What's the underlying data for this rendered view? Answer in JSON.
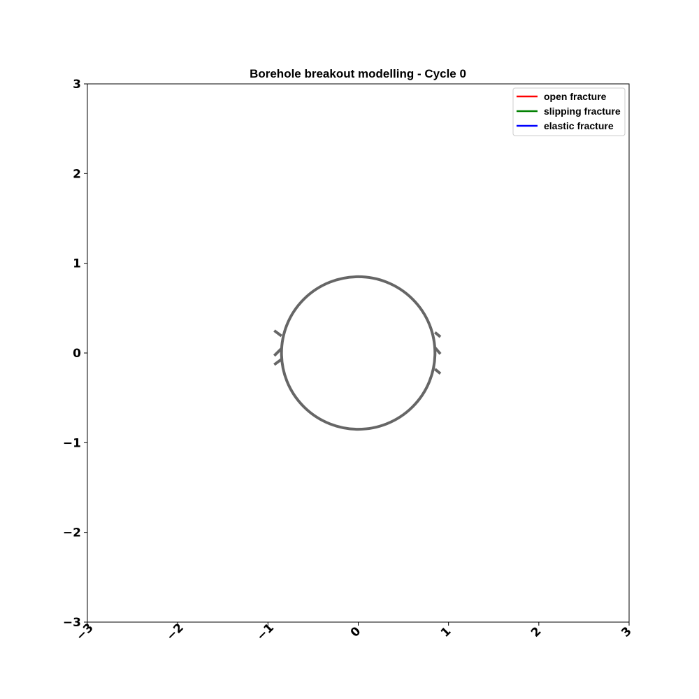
{
  "chart_data": {
    "type": "line",
    "title": "Borehole breakout modelling - Cycle 0",
    "xlabel": "",
    "ylabel": "",
    "xlim": [
      -3,
      3
    ],
    "ylim": [
      -3,
      3
    ],
    "x_ticks": [
      -3,
      -2,
      -1,
      0,
      1,
      2,
      3
    ],
    "y_ticks": [
      -3,
      -2,
      -1,
      0,
      1,
      2,
      3
    ],
    "x_tick_labels": [
      "−3",
      "−2",
      "−1",
      "0",
      "1",
      "2",
      "3"
    ],
    "y_tick_labels": [
      "−3",
      "−2",
      "−1",
      "0",
      "1",
      "2",
      "3"
    ],
    "x_tick_rotation_deg": 45,
    "grid": false,
    "legend_position": "top-right",
    "legend": [
      {
        "label": "open fracture",
        "color": "#ff0000"
      },
      {
        "label": "slipping fracture",
        "color": "#008000"
      },
      {
        "label": "elastic fracture",
        "color": "#0000ff"
      }
    ],
    "borehole": {
      "center": [
        0,
        0
      ],
      "radius": 0.85,
      "color": "#666666"
    },
    "fracture_segments": [
      {
        "x": [
          -0.85,
          -0.93
        ],
        "y": [
          0.19,
          0.25
        ],
        "color": "#666666"
      },
      {
        "x": [
          -0.85,
          -0.93
        ],
        "y": [
          0.05,
          -0.03
        ],
        "color": "#666666"
      },
      {
        "x": [
          -0.85,
          -0.93
        ],
        "y": [
          -0.07,
          -0.13
        ],
        "color": "#666666"
      },
      {
        "x": [
          0.85,
          0.91
        ],
        "y": [
          0.23,
          0.18
        ],
        "color": "#666666"
      },
      {
        "x": [
          0.85,
          0.91
        ],
        "y": [
          0.06,
          -0.01
        ],
        "color": "#666666"
      },
      {
        "x": [
          0.85,
          0.91
        ],
        "y": [
          -0.18,
          -0.23
        ],
        "color": "#666666"
      }
    ]
  }
}
